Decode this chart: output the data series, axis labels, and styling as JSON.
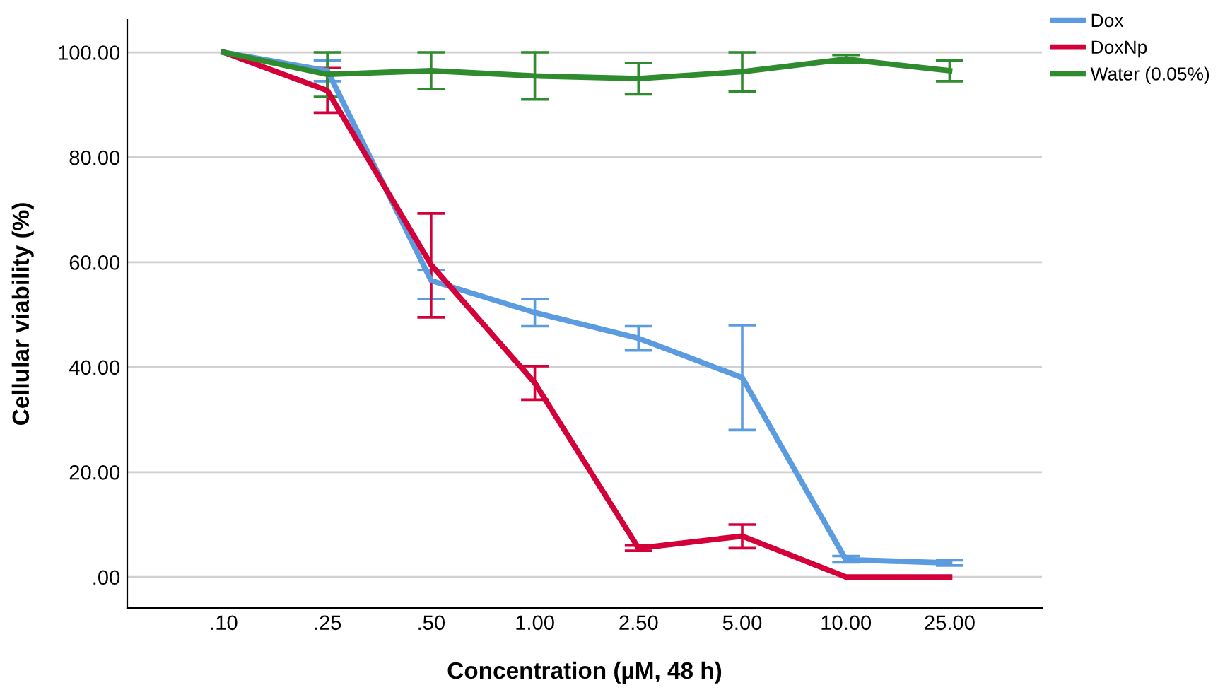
{
  "chart_data": {
    "type": "line",
    "xlabel": "Concentration (µM, 48 h)",
    "ylabel": "Cellular viability (%)",
    "categories": [
      ".10",
      ".25",
      ".50",
      "1.00",
      "2.50",
      "5.00",
      "10.00",
      "25.00"
    ],
    "series": [
      {
        "name": "Dox",
        "color": "#5b9be0",
        "values": [
          100,
          96.5,
          56.5,
          50.4,
          45.5,
          38,
          3.3,
          2.7
        ],
        "errors": [
          null,
          [
            94.5,
            98.5
          ],
          [
            53,
            58.5
          ],
          [
            47.8,
            53
          ],
          [
            43.2,
            47.8
          ],
          [
            28,
            48
          ],
          [
            2.8,
            4
          ],
          [
            2.2,
            3.2
          ]
        ]
      },
      {
        "name": "DoxNp",
        "color": "#d4003a",
        "values": [
          100,
          92.7,
          59.5,
          37,
          5.5,
          7.8,
          0,
          0
        ],
        "errors": [
          null,
          [
            88.5,
            97
          ],
          [
            49.5,
            69.3
          ],
          [
            33.8,
            40.2
          ],
          [
            5,
            6
          ],
          [
            5.5,
            10
          ],
          null,
          null
        ]
      },
      {
        "name": "Water (0.05%)",
        "color": "#2e8b2e",
        "values": [
          100,
          95.8,
          96.5,
          95.5,
          95,
          96.3,
          98.7,
          96.5
        ],
        "errors": [
          null,
          [
            91.5,
            100
          ],
          [
            93,
            100
          ],
          [
            91,
            100
          ],
          [
            92,
            98
          ],
          [
            92.5,
            100
          ],
          [
            98,
            99.5
          ],
          [
            94.5,
            98.4
          ]
        ]
      }
    ],
    "ylim": [
      -5.9,
      106.2
    ],
    "yticks": [
      {
        "value": 0,
        "label": ".00"
      },
      {
        "value": 20,
        "label": "20.00"
      },
      {
        "value": 40,
        "label": "40.00"
      },
      {
        "value": 60,
        "label": "60.00"
      },
      {
        "value": 80,
        "label": "80.00"
      },
      {
        "value": 100,
        "label": "100.00"
      }
    ],
    "grid": "y",
    "legend": "top right",
    "marker": "none",
    "line_style": "solid"
  }
}
